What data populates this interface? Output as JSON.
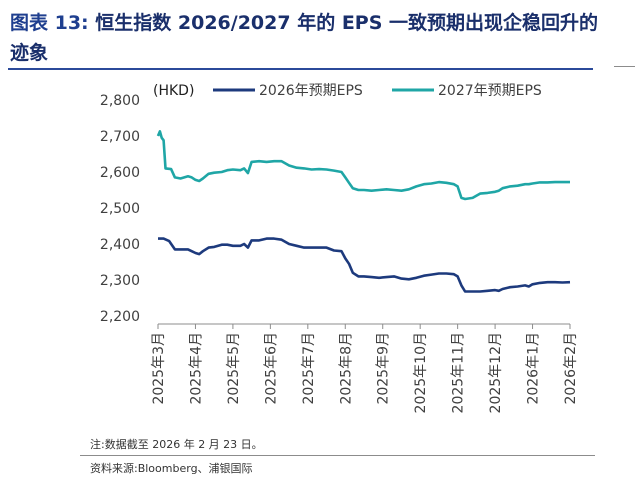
{
  "header": {
    "prefix": "图表 13:",
    "title": "恒生指数 2026/2027 年的 EPS 一致预期出现企稳回升的迹象"
  },
  "footer": {
    "note": "注:数据截至 2026 年 2 月 23 日。",
    "source": "资料来源:Bloomberg、浦银国际"
  },
  "chart_data": {
    "type": "line",
    "unit_label": "(HKD)",
    "ylim": [
      2200,
      2800
    ],
    "y_ticks": [
      "2,800",
      "2,700",
      "2,600",
      "2,500",
      "2,400",
      "2,300",
      "2,200"
    ],
    "y_tick_values": [
      2800,
      2700,
      2600,
      2500,
      2400,
      2300,
      2200
    ],
    "x_range": [
      0,
      11
    ],
    "x_ticks": [
      "2025年3月",
      "2025年4月",
      "2025年5月",
      "2025年6月",
      "2025年7月",
      "2025年8月",
      "2025年9月",
      "2025年10月",
      "2025年11月",
      "2025年12月",
      "2026年1月",
      "2026年2月"
    ],
    "x_tick_values": [
      0,
      1,
      2,
      3,
      4,
      5,
      6,
      7,
      8,
      9,
      10,
      11
    ],
    "legend_position": "top",
    "grid": false,
    "series": [
      {
        "name": "2026年预期EPS",
        "color": "#1d3a7d",
        "points": [
          [
            0.0,
            2415
          ],
          [
            0.15,
            2415
          ],
          [
            0.3,
            2408
          ],
          [
            0.45,
            2385
          ],
          [
            0.6,
            2385
          ],
          [
            0.8,
            2385
          ],
          [
            0.9,
            2380
          ],
          [
            1.0,
            2375
          ],
          [
            1.1,
            2372
          ],
          [
            1.2,
            2380
          ],
          [
            1.35,
            2390
          ],
          [
            1.5,
            2392
          ],
          [
            1.7,
            2398
          ],
          [
            1.85,
            2398
          ],
          [
            2.0,
            2395
          ],
          [
            2.2,
            2395
          ],
          [
            2.3,
            2400
          ],
          [
            2.4,
            2390
          ],
          [
            2.5,
            2410
          ],
          [
            2.7,
            2410
          ],
          [
            2.9,
            2415
          ],
          [
            3.1,
            2415
          ],
          [
            3.3,
            2412
          ],
          [
            3.5,
            2400
          ],
          [
            3.7,
            2395
          ],
          [
            3.9,
            2390
          ],
          [
            4.1,
            2390
          ],
          [
            4.3,
            2390
          ],
          [
            4.5,
            2390
          ],
          [
            4.7,
            2382
          ],
          [
            4.9,
            2380
          ],
          [
            5.0,
            2360
          ],
          [
            5.1,
            2345
          ],
          [
            5.2,
            2320
          ],
          [
            5.35,
            2310
          ],
          [
            5.5,
            2310
          ],
          [
            5.7,
            2308
          ],
          [
            5.9,
            2306
          ],
          [
            6.1,
            2308
          ],
          [
            6.3,
            2310
          ],
          [
            6.5,
            2304
          ],
          [
            6.7,
            2302
          ],
          [
            6.9,
            2306
          ],
          [
            7.1,
            2312
          ],
          [
            7.3,
            2315
          ],
          [
            7.5,
            2318
          ],
          [
            7.7,
            2318
          ],
          [
            7.9,
            2316
          ],
          [
            8.0,
            2310
          ],
          [
            8.1,
            2285
          ],
          [
            8.2,
            2268
          ],
          [
            8.4,
            2268
          ],
          [
            8.6,
            2268
          ],
          [
            8.8,
            2270
          ],
          [
            9.0,
            2272
          ],
          [
            9.1,
            2270
          ],
          [
            9.2,
            2275
          ],
          [
            9.4,
            2280
          ],
          [
            9.6,
            2282
          ],
          [
            9.8,
            2285
          ],
          [
            9.9,
            2282
          ],
          [
            10.0,
            2288
          ],
          [
            10.2,
            2292
          ],
          [
            10.4,
            2294
          ],
          [
            10.6,
            2294
          ],
          [
            10.8,
            2293
          ],
          [
            11.0,
            2294
          ]
        ]
      },
      {
        "name": "2027年预期EPS",
        "color": "#1fa6a6",
        "points": [
          [
            0.0,
            2700
          ],
          [
            0.05,
            2713
          ],
          [
            0.1,
            2695
          ],
          [
            0.15,
            2688
          ],
          [
            0.2,
            2610
          ],
          [
            0.35,
            2608
          ],
          [
            0.45,
            2585
          ],
          [
            0.6,
            2582
          ],
          [
            0.8,
            2588
          ],
          [
            0.9,
            2585
          ],
          [
            1.0,
            2578
          ],
          [
            1.1,
            2575
          ],
          [
            1.2,
            2582
          ],
          [
            1.35,
            2595
          ],
          [
            1.5,
            2598
          ],
          [
            1.7,
            2600
          ],
          [
            1.85,
            2605
          ],
          [
            2.0,
            2607
          ],
          [
            2.2,
            2605
          ],
          [
            2.3,
            2610
          ],
          [
            2.4,
            2597
          ],
          [
            2.5,
            2628
          ],
          [
            2.7,
            2630
          ],
          [
            2.9,
            2628
          ],
          [
            3.1,
            2630
          ],
          [
            3.3,
            2630
          ],
          [
            3.5,
            2618
          ],
          [
            3.7,
            2612
          ],
          [
            3.9,
            2610
          ],
          [
            4.1,
            2607
          ],
          [
            4.3,
            2608
          ],
          [
            4.5,
            2607
          ],
          [
            4.7,
            2604
          ],
          [
            4.9,
            2600
          ],
          [
            5.0,
            2585
          ],
          [
            5.1,
            2570
          ],
          [
            5.2,
            2555
          ],
          [
            5.35,
            2550
          ],
          [
            5.5,
            2550
          ],
          [
            5.7,
            2548
          ],
          [
            5.9,
            2550
          ],
          [
            6.1,
            2552
          ],
          [
            6.3,
            2550
          ],
          [
            6.5,
            2548
          ],
          [
            6.7,
            2552
          ],
          [
            6.9,
            2560
          ],
          [
            7.1,
            2566
          ],
          [
            7.3,
            2568
          ],
          [
            7.5,
            2572
          ],
          [
            7.7,
            2570
          ],
          [
            7.9,
            2566
          ],
          [
            8.0,
            2560
          ],
          [
            8.1,
            2528
          ],
          [
            8.2,
            2525
          ],
          [
            8.4,
            2528
          ],
          [
            8.6,
            2540
          ],
          [
            8.8,
            2542
          ],
          [
            9.0,
            2545
          ],
          [
            9.1,
            2548
          ],
          [
            9.2,
            2555
          ],
          [
            9.4,
            2560
          ],
          [
            9.6,
            2562
          ],
          [
            9.8,
            2566
          ],
          [
            9.9,
            2566
          ],
          [
            10.0,
            2568
          ],
          [
            10.2,
            2571
          ],
          [
            10.4,
            2571
          ],
          [
            10.6,
            2572
          ],
          [
            10.8,
            2572
          ],
          [
            11.0,
            2572
          ]
        ]
      }
    ]
  }
}
